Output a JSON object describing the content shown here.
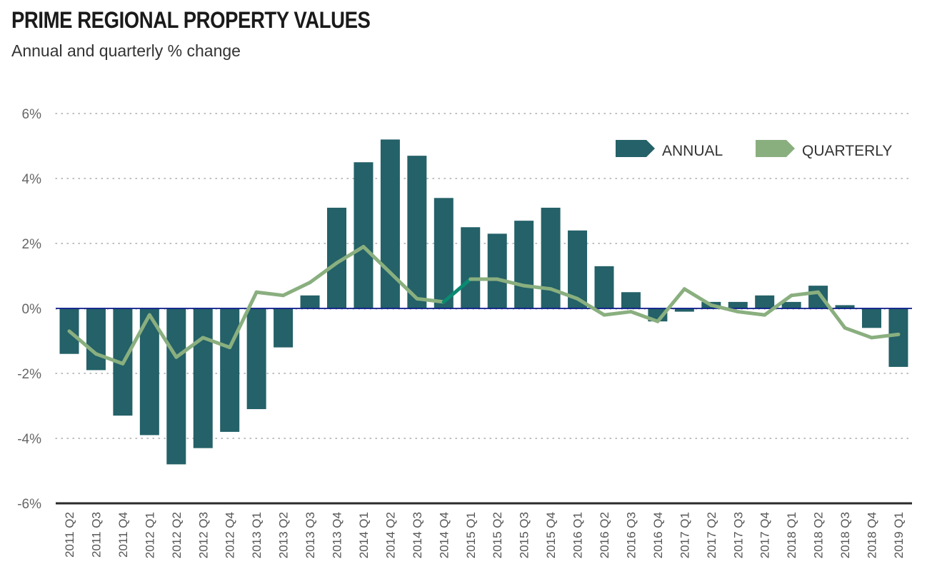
{
  "header": {
    "title": "PRIME REGIONAL PROPERTY VALUES",
    "subtitle": "Annual and quarterly % change"
  },
  "colors": {
    "annual": "#246168",
    "quarterly": "#8aaf7f",
    "quarterly_highlight": "#0a8a72",
    "zero_line": "#0a1a8a",
    "axis": "#2a2a2a",
    "grid": "#999999"
  },
  "chart_data": {
    "type": "bar",
    "title": "PRIME REGIONAL PROPERTY VALUES",
    "subtitle": "Annual and quarterly % change",
    "xlabel": "",
    "ylabel": "",
    "ylim": [
      -6,
      6
    ],
    "yticks": [
      6,
      4,
      2,
      0,
      -2,
      -4,
      -6
    ],
    "ytick_labels": [
      "6%",
      "4%",
      "2%",
      "0%",
      "-2%",
      "-4%",
      "-6%"
    ],
    "grid": true,
    "legend_position": "top-right",
    "categories": [
      "2011 Q2",
      "2011 Q3",
      "2011 Q4",
      "2012 Q1",
      "2012 Q2",
      "2012 Q3",
      "2012 Q4",
      "2013 Q1",
      "2013 Q2",
      "2013 Q3",
      "2013 Q4",
      "2014 Q1",
      "2014 Q2",
      "2014 Q3",
      "2014 Q4",
      "2015 Q1",
      "2015 Q2",
      "2015 Q3",
      "2015 Q4",
      "2016 Q1",
      "2016 Q2",
      "2016 Q3",
      "2016 Q4",
      "2017 Q1",
      "2017 Q2",
      "2017 Q3",
      "2017 Q4",
      "2018 Q1",
      "2018 Q2",
      "2018 Q3",
      "2018 Q4",
      "2019 Q1"
    ],
    "series": [
      {
        "name": "ANNUAL",
        "type": "bar",
        "values": [
          -1.4,
          -1.9,
          -3.3,
          -3.9,
          -4.8,
          -4.3,
          -3.8,
          -3.1,
          -1.2,
          0.4,
          3.1,
          4.5,
          5.2,
          4.7,
          3.4,
          2.5,
          2.3,
          2.7,
          3.1,
          2.4,
          1.3,
          0.5,
          -0.4,
          -0.1,
          0.2,
          0.2,
          0.4,
          0.2,
          0.7,
          0.1,
          -0.6,
          -1.8
        ]
      },
      {
        "name": "QUARTERLY",
        "type": "line",
        "values": [
          -0.7,
          -1.4,
          -1.7,
          -0.2,
          -1.5,
          -0.9,
          -1.2,
          0.5,
          0.4,
          0.8,
          1.4,
          1.9,
          1.1,
          0.3,
          0.2,
          0.9,
          0.9,
          0.7,
          0.6,
          0.3,
          -0.2,
          -0.1,
          -0.4,
          0.6,
          0.1,
          -0.1,
          -0.2,
          0.4,
          0.5,
          -0.6,
          -0.9,
          -0.8
        ],
        "highlight_segment": [
          "2014 Q4",
          "2015 Q1"
        ]
      }
    ]
  }
}
